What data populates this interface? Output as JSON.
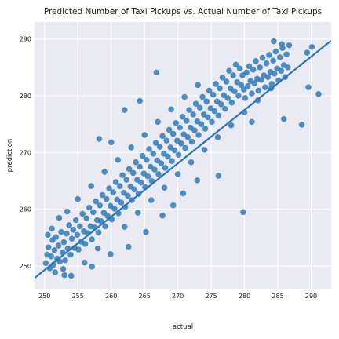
{
  "chart_data": {
    "type": "scatter",
    "title": "Predicted Number of Taxi Pickups vs. Actual Number of Taxi Pickups",
    "xlabel": "actual",
    "ylabel": "prediction",
    "xlim": [
      248.5,
      293
    ],
    "ylim": [
      246,
      293
    ],
    "xticks": [
      250,
      255,
      260,
      265,
      270,
      275,
      280,
      285,
      290
    ],
    "yticks": [
      250,
      260,
      270,
      280,
      290
    ],
    "grid": true,
    "background": "#eaeaf2",
    "point_color": "#2a78b6",
    "fit_line": {
      "slope": 0.94,
      "intercept": 14.3
    },
    "series": [
      {
        "points": [
          [
            250.2,
            250.5
          ],
          [
            250.4,
            252.0
          ],
          [
            250.6,
            253.3
          ],
          [
            250.8,
            249.6
          ],
          [
            251.0,
            251.7
          ],
          [
            251.2,
            254.6
          ],
          [
            251.3,
            250.2
          ],
          [
            251.5,
            252.8
          ],
          [
            251.7,
            255.1
          ],
          [
            251.9,
            251.3
          ],
          [
            252.1,
            253.6
          ],
          [
            252.3,
            250.8
          ],
          [
            252.5,
            256.0
          ],
          [
            252.7,
            252.4
          ],
          [
            252.9,
            254.2
          ],
          [
            253.1,
            251.0
          ],
          [
            253.3,
            255.7
          ],
          [
            253.5,
            253.1
          ],
          [
            253.7,
            257.2
          ],
          [
            253.9,
            252.0
          ],
          [
            254.1,
            254.8
          ],
          [
            254.3,
            256.4
          ],
          [
            254.5,
            253.2
          ],
          [
            254.7,
            258.1
          ],
          [
            254.9,
            255.5
          ],
          [
            255.1,
            252.9
          ],
          [
            255.3,
            257.0
          ],
          [
            255.5,
            254.3
          ],
          [
            255.7,
            259.2
          ],
          [
            255.9,
            256.1
          ],
          [
            256.1,
            253.9
          ],
          [
            256.3,
            258.4
          ],
          [
            256.5,
            255.8
          ],
          [
            256.7,
            260.3
          ],
          [
            256.9,
            257.0
          ],
          [
            257.1,
            254.7
          ],
          [
            257.3,
            259.5
          ],
          [
            257.5,
            256.8
          ],
          [
            257.7,
            261.4
          ],
          [
            257.9,
            258.1
          ],
          [
            258.1,
            255.9
          ],
          [
            258.3,
            260.7
          ],
          [
            258.5,
            257.9
          ],
          [
            258.7,
            262.5
          ],
          [
            258.9,
            259.4
          ],
          [
            259.1,
            257.0
          ],
          [
            259.3,
            261.8
          ],
          [
            259.5,
            258.8
          ],
          [
            259.7,
            263.7
          ],
          [
            259.9,
            260.6
          ],
          [
            260.1,
            258.2
          ],
          [
            260.3,
            263.0
          ],
          [
            260.5,
            260.1
          ],
          [
            260.7,
            264.8
          ],
          [
            260.9,
            261.7
          ],
          [
            261.1,
            259.3
          ],
          [
            261.3,
            264.1
          ],
          [
            261.5,
            261.2
          ],
          [
            261.7,
            266.0
          ],
          [
            261.9,
            262.9
          ],
          [
            262.1,
            260.4
          ],
          [
            262.3,
            265.2
          ],
          [
            262.5,
            262.4
          ],
          [
            262.7,
            267.1
          ],
          [
            262.9,
            264.0
          ],
          [
            263.1,
            261.6
          ],
          [
            263.3,
            266.4
          ],
          [
            263.5,
            263.5
          ],
          [
            263.7,
            268.3
          ],
          [
            263.9,
            265.2
          ],
          [
            264.1,
            262.7
          ],
          [
            264.3,
            267.5
          ],
          [
            264.5,
            264.7
          ],
          [
            264.7,
            269.4
          ],
          [
            264.9,
            266.3
          ],
          [
            265.1,
            263.9
          ],
          [
            265.3,
            268.7
          ],
          [
            265.5,
            265.8
          ],
          [
            265.7,
            270.6
          ],
          [
            265.9,
            267.5
          ],
          [
            266.1,
            265.0
          ],
          [
            266.3,
            269.8
          ],
          [
            266.5,
            267.0
          ],
          [
            266.7,
            271.7
          ],
          [
            266.9,
            268.6
          ],
          [
            267.1,
            266.2
          ],
          [
            267.3,
            271.0
          ],
          [
            267.5,
            268.1
          ],
          [
            267.7,
            272.9
          ],
          [
            267.9,
            269.8
          ],
          [
            268.1,
            267.3
          ],
          [
            268.3,
            272.1
          ],
          [
            268.5,
            269.3
          ],
          [
            268.7,
            274.0
          ],
          [
            268.9,
            270.9
          ],
          [
            269.1,
            268.5
          ],
          [
            269.3,
            273.3
          ],
          [
            269.5,
            270.4
          ],
          [
            269.7,
            275.2
          ],
          [
            269.9,
            272.1
          ],
          [
            270.1,
            269.6
          ],
          [
            270.3,
            274.4
          ],
          [
            270.5,
            271.6
          ],
          [
            270.7,
            276.3
          ],
          [
            270.9,
            273.2
          ],
          [
            271.1,
            270.8
          ],
          [
            271.3,
            275.6
          ],
          [
            271.5,
            272.7
          ],
          [
            271.7,
            277.5
          ],
          [
            271.9,
            274.4
          ],
          [
            272.1,
            271.9
          ],
          [
            272.3,
            276.7
          ],
          [
            272.5,
            273.9
          ],
          [
            272.7,
            278.6
          ],
          [
            272.9,
            275.5
          ],
          [
            273.1,
            273.1
          ],
          [
            273.3,
            277.9
          ],
          [
            273.5,
            275.0
          ],
          [
            273.7,
            279.8
          ],
          [
            273.9,
            276.7
          ],
          [
            274.1,
            274.2
          ],
          [
            274.3,
            279.0
          ],
          [
            274.5,
            276.2
          ],
          [
            274.7,
            280.9
          ],
          [
            274.9,
            277.8
          ],
          [
            275.1,
            275.4
          ],
          [
            275.3,
            280.2
          ],
          [
            275.5,
            277.3
          ],
          [
            275.7,
            282.1
          ],
          [
            275.9,
            279.0
          ],
          [
            276.1,
            276.5
          ],
          [
            276.3,
            281.3
          ],
          [
            276.5,
            278.5
          ],
          [
            276.7,
            283.2
          ],
          [
            276.9,
            280.1
          ],
          [
            277.1,
            277.7
          ],
          [
            277.3,
            282.5
          ],
          [
            277.5,
            279.6
          ],
          [
            277.7,
            284.4
          ],
          [
            277.9,
            281.3
          ],
          [
            278.1,
            278.8
          ],
          [
            278.3,
            283.6
          ],
          [
            278.5,
            280.8
          ],
          [
            278.7,
            285.5
          ],
          [
            278.9,
            282.4
          ],
          [
            279.1,
            280.0
          ],
          [
            279.3,
            284.8
          ],
          [
            279.5,
            281.9
          ],
          [
            279.7,
            283.6
          ],
          [
            279.9,
            281.1
          ],
          [
            280.1,
            279.6
          ],
          [
            280.3,
            284.1
          ],
          [
            280.5,
            281.7
          ],
          [
            280.7,
            285.2
          ],
          [
            280.9,
            282.6
          ],
          [
            281.1,
            280.4
          ],
          [
            281.3,
            284.6
          ],
          [
            281.5,
            282.2
          ],
          [
            281.7,
            286.1
          ],
          [
            281.9,
            283.0
          ],
          [
            282.1,
            280.9
          ],
          [
            282.3,
            285.0
          ],
          [
            282.5,
            282.8
          ],
          [
            282.7,
            286.7
          ],
          [
            282.9,
            283.6
          ],
          [
            283.1,
            281.5
          ],
          [
            283.3,
            285.7
          ],
          [
            283.5,
            283.3
          ],
          [
            283.7,
            287.2
          ],
          [
            283.9,
            284.2
          ],
          [
            284.1,
            282.1
          ],
          [
            284.3,
            286.2
          ],
          [
            284.5,
            283.9
          ],
          [
            284.7,
            287.8
          ],
          [
            284.9,
            284.8
          ],
          [
            285.1,
            282.7
          ],
          [
            285.3,
            286.8
          ],
          [
            285.5,
            284.4
          ],
          [
            285.7,
            288.4
          ],
          [
            285.9,
            285.4
          ],
          [
            286.1,
            283.3
          ],
          [
            286.3,
            287.3
          ],
          [
            286.5,
            285.0
          ],
          [
            286.7,
            288.9
          ],
          [
            254.0,
            248.3
          ],
          [
            256.0,
            250.6
          ],
          [
            258.0,
            253.1
          ],
          [
            262.0,
            256.9
          ],
          [
            264.0,
            259.4
          ],
          [
            266.0,
            261.6
          ],
          [
            268.0,
            263.8
          ],
          [
            270.0,
            266.2
          ],
          [
            272.0,
            268.3
          ],
          [
            274.0,
            270.5
          ],
          [
            276.0,
            272.7
          ],
          [
            278.0,
            274.8
          ],
          [
            280.0,
            277.1
          ],
          [
            282.0,
            279.2
          ],
          [
            284.0,
            281.3
          ],
          [
            255.0,
            261.8
          ],
          [
            257.0,
            264.1
          ],
          [
            259.0,
            266.6
          ],
          [
            261.0,
            268.7
          ],
          [
            263.0,
            270.9
          ],
          [
            265.0,
            273.1
          ],
          [
            267.0,
            275.4
          ],
          [
            269.0,
            277.6
          ],
          [
            271.0,
            279.8
          ],
          [
            273.0,
            281.9
          ],
          [
            251.6,
            248.9
          ],
          [
            252.8,
            249.5
          ],
          [
            250.5,
            255.5
          ],
          [
            251.1,
            256.6
          ],
          [
            252.2,
            258.5
          ],
          [
            253.4,
            259.6
          ],
          [
            253.0,
            248.4
          ],
          [
            262.0,
            277.5
          ],
          [
            264.3,
            279.1
          ],
          [
            260.0,
            271.8
          ],
          [
            258.2,
            272.4
          ],
          [
            266.8,
            284.1
          ],
          [
            284.4,
            289.6
          ],
          [
            285.6,
            289.1
          ],
          [
            289.4,
            287.6
          ],
          [
            290.1,
            288.6
          ],
          [
            289.6,
            281.5
          ],
          [
            291.1,
            280.3
          ],
          [
            288.6,
            274.9
          ],
          [
            285.9,
            275.9
          ],
          [
            281.1,
            275.4
          ],
          [
            279.8,
            259.5
          ],
          [
            276.1,
            265.9
          ],
          [
            272.9,
            265.1
          ],
          [
            270.8,
            262.8
          ],
          [
            267.7,
            258.9
          ],
          [
            265.2,
            256.0
          ],
          [
            262.6,
            253.4
          ],
          [
            259.9,
            252.1
          ],
          [
            257.1,
            249.9
          ],
          [
            269.3,
            260.7
          ]
        ]
      }
    ]
  }
}
